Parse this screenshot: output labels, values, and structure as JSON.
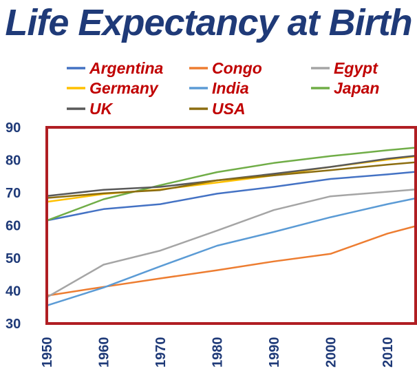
{
  "chart_data": {
    "type": "line",
    "title": "Life Expectancy at Birth",
    "xlabel": "",
    "ylabel": "",
    "ylim": [
      30,
      90
    ],
    "xlim": [
      1950,
      2015
    ],
    "x_ticks": [
      1950,
      1960,
      1970,
      1980,
      1990,
      2000,
      2010
    ],
    "y_ticks": [
      30,
      40,
      50,
      60,
      70,
      80,
      90
    ],
    "grid": false,
    "legend_position": "top",
    "x": [
      1950,
      1960,
      1970,
      1980,
      1990,
      2000,
      2010,
      2015
    ],
    "series": [
      {
        "name": "Argentina",
        "color": "#4472c4",
        "values": [
          61.5,
          65.0,
          66.5,
          69.7,
          71.8,
          74.2,
          75.6,
          76.4
        ]
      },
      {
        "name": "Congo",
        "color": "#ed7d31",
        "values": [
          38.5,
          41.2,
          43.8,
          46.3,
          49.0,
          51.3,
          57.5,
          59.8
        ]
      },
      {
        "name": "Egypt",
        "color": "#a5a5a5",
        "values": [
          38.0,
          48.0,
          52.3,
          58.4,
          64.7,
          68.9,
          70.3,
          71.0
        ]
      },
      {
        "name": "Germany",
        "color": "#ffc000",
        "values": [
          67.2,
          69.6,
          71.0,
          73.1,
          75.3,
          77.9,
          80.1,
          81.1
        ]
      },
      {
        "name": "India",
        "color": "#5b9bd5",
        "values": [
          35.5,
          41.0,
          47.5,
          53.8,
          58.0,
          62.5,
          66.5,
          68.3
        ]
      },
      {
        "name": "Japan",
        "color": "#70ad47",
        "values": [
          61.5,
          68.0,
          72.3,
          76.3,
          79.1,
          81.2,
          83.0,
          83.8
        ]
      },
      {
        "name": "UK",
        "color": "#595959",
        "values": [
          69.0,
          70.9,
          71.8,
          73.8,
          75.8,
          77.9,
          80.4,
          81.3
        ]
      },
      {
        "name": "USA",
        "color": "#8c6d10",
        "values": [
          68.4,
          69.8,
          70.8,
          73.8,
          75.3,
          76.9,
          78.6,
          79.3
        ]
      }
    ],
    "legend_columns": [
      [
        "Argentina",
        "Germany",
        "UK"
      ],
      [
        "Congo",
        "India",
        "USA"
      ],
      [
        "Egypt",
        "Japan"
      ]
    ],
    "plot_border_color": "#b01e23",
    "title_color": "#1f3a78",
    "legend_text_color": "#c00000",
    "tick_color": "#1f3a78"
  }
}
